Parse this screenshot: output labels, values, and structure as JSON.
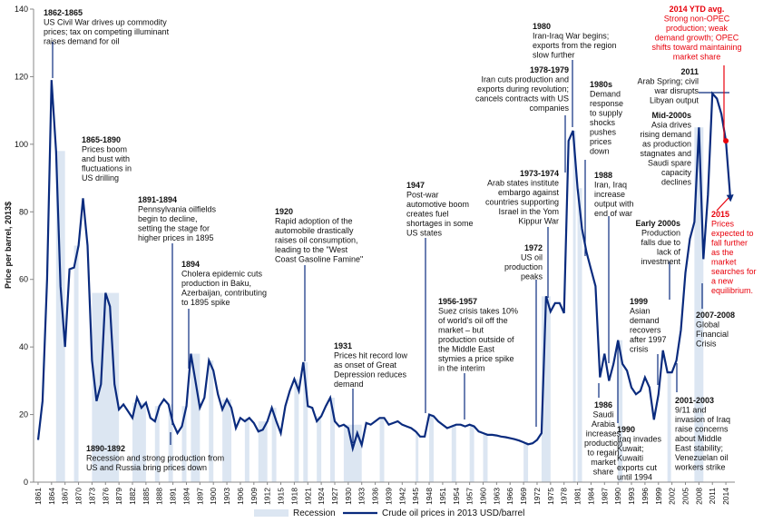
{
  "chart_data": {
    "type": "line",
    "y_label": "Price per barrel, 2013$",
    "ylim": [
      0,
      140
    ],
    "yticks": [
      0,
      20,
      40,
      60,
      80,
      100,
      120,
      140
    ],
    "xlim": [
      1860,
      2016
    ],
    "xticks": [
      1861,
      1864,
      1867,
      1870,
      1873,
      1876,
      1879,
      1882,
      1885,
      1888,
      1891,
      1894,
      1897,
      1900,
      1903,
      1906,
      1909,
      1912,
      1915,
      1918,
      1921,
      1924,
      1927,
      1930,
      1933,
      1936,
      1939,
      1942,
      1945,
      1948,
      1951,
      1954,
      1957,
      1960,
      1963,
      1966,
      1969,
      1972,
      1975,
      1978,
      1981,
      1984,
      1987,
      1990,
      1993,
      1996,
      1999,
      2002,
      2005,
      2008,
      2011,
      2014
    ],
    "x": [
      1861,
      1862,
      1863,
      1864,
      1865,
      1866,
      1867,
      1868,
      1869,
      1870,
      1871,
      1872,
      1873,
      1874,
      1875,
      1876,
      1877,
      1878,
      1879,
      1880,
      1881,
      1882,
      1883,
      1884,
      1885,
      1886,
      1887,
      1888,
      1889,
      1890,
      1891,
      1892,
      1893,
      1894,
      1895,
      1896,
      1897,
      1898,
      1899,
      1900,
      1901,
      1902,
      1903,
      1904,
      1905,
      1906,
      1907,
      1908,
      1909,
      1910,
      1911,
      1912,
      1913,
      1914,
      1915,
      1916,
      1917,
      1918,
      1919,
      1920,
      1921,
      1922,
      1923,
      1924,
      1925,
      1926,
      1927,
      1928,
      1929,
      1930,
      1931,
      1932,
      1933,
      1934,
      1935,
      1936,
      1937,
      1938,
      1939,
      1940,
      1941,
      1942,
      1943,
      1944,
      1945,
      1946,
      1947,
      1948,
      1949,
      1950,
      1951,
      1952,
      1953,
      1954,
      1955,
      1956,
      1957,
      1958,
      1959,
      1960,
      1961,
      1962,
      1963,
      1964,
      1965,
      1966,
      1967,
      1968,
      1969,
      1970,
      1971,
      1972,
      1973,
      1974,
      1975,
      1976,
      1977,
      1978,
      1979,
      1980,
      1981,
      1982,
      1983,
      1984,
      1985,
      1986,
      1987,
      1988,
      1989,
      1990,
      1991,
      1992,
      1993,
      1994,
      1995,
      1996,
      1997,
      1998,
      1999,
      2000,
      2001,
      2002,
      2003,
      2004,
      2005,
      2006,
      2007,
      2008,
      2009,
      2010,
      2011,
      2012,
      2013,
      2014,
      2015
    ],
    "series": [
      {
        "name": "Crude oil prices in 2013 USD/barrel",
        "color": "#0a2b7e",
        "values": [
          12.5,
          24,
          60,
          119,
          98,
          58,
          40,
          63,
          63.5,
          70,
          84,
          70,
          36,
          24,
          29,
          56,
          52,
          29,
          21.5,
          23,
          21,
          19,
          25,
          22,
          23.5,
          19,
          18,
          22.5,
          24.5,
          23,
          17.5,
          14.5,
          16.5,
          22.5,
          38,
          30,
          22,
          25,
          36,
          33,
          26,
          21.5,
          24.5,
          22,
          16,
          19,
          18,
          19,
          17.5,
          15,
          15.5,
          18,
          22,
          18,
          14.5,
          22.5,
          27,
          30.5,
          27,
          35.5,
          22.5,
          22,
          18,
          19.5,
          22.5,
          25,
          18,
          16.5,
          17,
          16,
          10,
          14.5,
          11,
          17.5,
          17,
          18,
          19,
          19,
          17,
          17.5,
          18,
          17,
          16.5,
          16,
          15,
          13.5,
          13.5,
          20,
          19.5,
          18,
          17,
          16,
          16.5,
          17,
          17,
          16.5,
          17,
          16.5,
          15,
          14.5,
          14,
          14,
          13.8,
          13.5,
          13.3,
          13,
          12.7,
          12.3,
          11.8,
          11.2,
          11.5,
          12.5,
          14.5,
          55,
          50.5,
          53,
          53,
          50,
          101,
          104,
          87,
          75,
          68,
          63,
          58,
          31,
          38,
          30,
          35,
          42,
          35,
          33,
          28,
          26,
          27,
          31,
          28,
          18.5,
          26,
          39,
          32.5,
          32.5,
          36,
          45,
          62,
          72,
          77,
          105,
          66,
          85,
          115,
          113.5,
          109,
          101,
          84
        ]
      }
    ],
    "recession_name": "Recession",
    "recession_color": "#dce6f2",
    "recessions": [
      [
        1865,
        1867
      ],
      [
        1869,
        1870
      ],
      [
        1873,
        1879
      ],
      [
        1882,
        1885
      ],
      [
        1887,
        1888
      ],
      [
        1890,
        1891
      ],
      [
        1893,
        1894
      ],
      [
        1895,
        1897
      ],
      [
        1899,
        1900
      ],
      [
        1902,
        1904
      ],
      [
        1907,
        1908
      ],
      [
        1910,
        1912
      ],
      [
        1913,
        1914
      ],
      [
        1918,
        1919
      ],
      [
        1920,
        1921
      ],
      [
        1923,
        1924
      ],
      [
        1926,
        1927
      ],
      [
        1929,
        1933
      ],
      [
        1937,
        1938
      ],
      [
        1945,
        1945.6
      ],
      [
        1948,
        1949
      ],
      [
        1953,
        1954
      ],
      [
        1957,
        1958
      ],
      [
        1960,
        1961
      ],
      [
        1969,
        1970
      ],
      [
        1973,
        1975
      ],
      [
        1980,
        1980.6
      ],
      [
        1981,
        1982
      ],
      [
        1990,
        1991
      ],
      [
        2001,
        2001.8
      ],
      [
        2007,
        2009
      ]
    ],
    "highlight": {
      "x": 2014,
      "color": "#e8000b"
    },
    "annotations": [
      {
        "title": "1862-1865",
        "lines": [
          "US Civil War drives up commodity",
          "prices; tax on competing illuminant",
          "raises demand for oil"
        ]
      },
      {
        "title": "1865-1890",
        "lines": [
          "Prices boom",
          "and bust with",
          "fluctuations in",
          "US drilling"
        ]
      },
      {
        "title": "1891-1894",
        "lines": [
          "Pennsylvania oilfields",
          "begin to decline,",
          "setting the stage for",
          "higher prices in 1895"
        ]
      },
      {
        "title": "1894",
        "lines": [
          "Cholera epidemic cuts",
          "production in Baku,",
          "Azerbaijan, contributing",
          "to 1895 spike"
        ]
      },
      {
        "title": "1890-1892",
        "lines": [
          "Recession and strong production from",
          "US and Russia bring prices down"
        ]
      },
      {
        "title": "1920",
        "lines": [
          "Rapid adoption of the",
          "automobile drastically",
          "raises oil consumption,",
          "leading to the \"West",
          "Coast Gasoline Famine\""
        ]
      },
      {
        "title": "1931",
        "lines": [
          "Prices hit record low",
          "as onset of Great",
          "Depression reduces",
          "demand"
        ]
      },
      {
        "title": "1947",
        "lines": [
          "Post-war",
          "automotive boom",
          "creates fuel",
          "shortages in some",
          "US states"
        ]
      },
      {
        "title": "1956-1957",
        "lines": [
          "Suez crisis takes 10%",
          "of world's oil off the",
          "market – but",
          "production outside of",
          "the Middle East",
          "stymies a price spike",
          "in the interim"
        ]
      },
      {
        "title": "1972",
        "lines": [
          "US oil",
          "production",
          "peaks"
        ]
      },
      {
        "title": "1973-1974",
        "lines": [
          "Arab states institute",
          "embargo against",
          "countries supporting",
          "Israel in the Yom",
          "Kippur War"
        ]
      },
      {
        "title": "1978-1979",
        "lines": [
          "Iran cuts production and",
          "exports during revolution;",
          "cancels contracts with US",
          "companies"
        ]
      },
      {
        "title": "1980",
        "lines": [
          "Iran-Iraq War begins;",
          "exports from the region",
          "slow further"
        ]
      },
      {
        "title": "1980s",
        "lines": [
          "Demand",
          "response",
          "to supply",
          "shocks",
          "pushes",
          "prices",
          "down"
        ]
      },
      {
        "title": "1986",
        "lines": [
          "Saudi",
          "Arabia",
          "increases",
          "production",
          "to regain",
          "market",
          "share"
        ]
      },
      {
        "title": "1988",
        "lines": [
          "Iran, Iraq",
          "increase",
          "output with",
          "end of war"
        ]
      },
      {
        "title": "1990",
        "lines": [
          "Iraq invades",
          "Kuwait;",
          "Kuwaiti",
          "exports cut",
          "until 1994"
        ]
      },
      {
        "title": "1999",
        "lines": [
          "Asian",
          "demand",
          "recovers",
          "after 1997",
          "crisis"
        ]
      },
      {
        "title": "Early 2000s",
        "lines": [
          "Production",
          "falls due to",
          "lack of",
          "investment"
        ]
      },
      {
        "title": "2001-2003",
        "lines": [
          "9/11 and",
          "invasion of Iraq",
          "raise concerns",
          "about Middle",
          "East stability;",
          "Venezuelan oil",
          "workers strike"
        ]
      },
      {
        "title": "2007-2008",
        "lines": [
          "Global",
          "Financial",
          "Crisis"
        ]
      },
      {
        "title": "Mid-2000s",
        "lines": [
          "Asia drives",
          "rising demand",
          "as production",
          "stagnates and",
          "Saudi spare",
          "capacity",
          "declines"
        ]
      },
      {
        "title": "2011",
        "lines": [
          "Arab Spring; civil",
          "war disrupts",
          "Libyan output"
        ]
      },
      {
        "title": "2014 YTD avg.",
        "color": "#e8000b",
        "lines": [
          "Strong non-OPEC",
          "production; weak",
          "demand growth; OPEC",
          "shifts toward maintaining",
          "market share"
        ]
      },
      {
        "title": "2015",
        "color": "#e8000b",
        "lines": [
          "Prices",
          "expected to",
          "fall further",
          "as the",
          "market",
          "searches for",
          "a new",
          "equilibrium."
        ]
      }
    ]
  }
}
